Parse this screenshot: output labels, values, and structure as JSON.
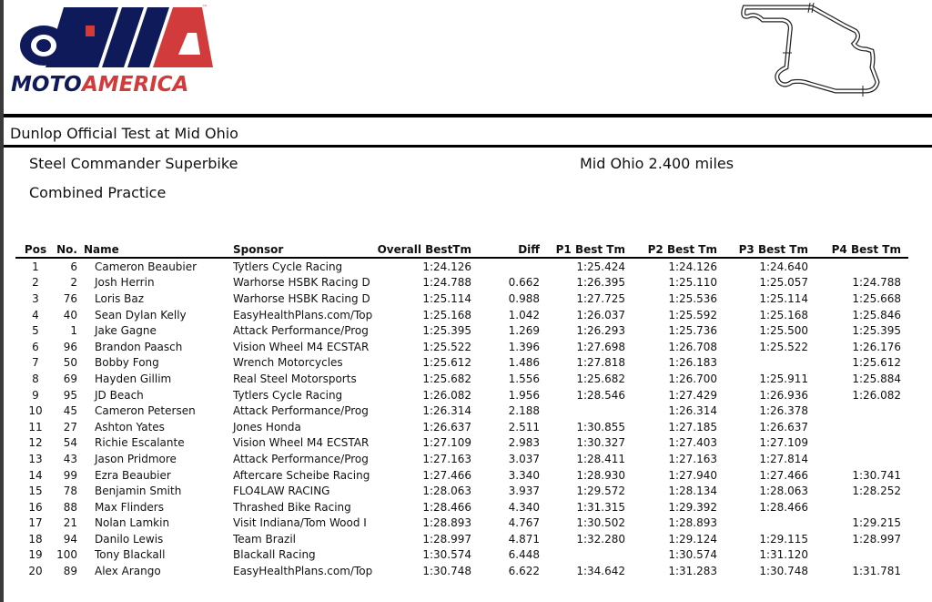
{
  "logo": {
    "text_moto": "MOTO",
    "text_america": "AMERICA",
    "tm": "™",
    "colors": {
      "navy": "#0f1a5a",
      "red": "#d23b3b"
    }
  },
  "header": {
    "event_title": "Dunlop Official Test at Mid Ohio",
    "class_name": "Steel Commander Superbike",
    "track": "Mid Ohio 2.400 miles",
    "session": "Combined Practice"
  },
  "table": {
    "columns": [
      "Pos",
      "No.",
      "Name",
      "Sponsor",
      "Overall BestTm",
      "Diff",
      "P1 Best Tm",
      "P2 Best Tm",
      "P3 Best Tm",
      "P4 Best Tm"
    ],
    "rows": [
      [
        "1",
        "6",
        "Cameron Beaubier",
        "Tytlers Cycle Racing",
        "1:24.126",
        "",
        "1:25.424",
        "1:24.126",
        "1:24.640",
        ""
      ],
      [
        "2",
        "2",
        "Josh Herrin",
        "Warhorse HSBK Racing D",
        "1:24.788",
        "0.662",
        "1:26.395",
        "1:25.110",
        "1:25.057",
        "1:24.788"
      ],
      [
        "3",
        "76",
        "Loris Baz",
        "Warhorse HSBK Racing D",
        "1:25.114",
        "0.988",
        "1:27.725",
        "1:25.536",
        "1:25.114",
        "1:25.668"
      ],
      [
        "4",
        "40",
        "Sean Dylan Kelly",
        "EasyHealthPlans.com/Top",
        "1:25.168",
        "1.042",
        "1:26.037",
        "1:25.592",
        "1:25.168",
        "1:25.846"
      ],
      [
        "5",
        "1",
        "Jake Gagne",
        "Attack Performance/Prog",
        "1:25.395",
        "1.269",
        "1:26.293",
        "1:25.736",
        "1:25.500",
        "1:25.395"
      ],
      [
        "6",
        "96",
        "Brandon Paasch",
        "Vision Wheel M4 ECSTAR",
        "1:25.522",
        "1.396",
        "1:27.698",
        "1:26.708",
        "1:25.522",
        "1:26.176"
      ],
      [
        "7",
        "50",
        "Bobby Fong",
        "Wrench Motorcycles",
        "1:25.612",
        "1.486",
        "1:27.818",
        "1:26.183",
        "",
        "1:25.612"
      ],
      [
        "8",
        "69",
        "Hayden Gillim",
        "Real Steel Motorsports",
        "1:25.682",
        "1.556",
        "1:25.682",
        "1:26.700",
        "1:25.911",
        "1:25.884"
      ],
      [
        "9",
        "95",
        "JD Beach",
        "Tytlers Cycle Racing",
        "1:26.082",
        "1.956",
        "1:28.546",
        "1:27.429",
        "1:26.936",
        "1:26.082"
      ],
      [
        "10",
        "45",
        "Cameron Petersen",
        "Attack Performance/Prog",
        "1:26.314",
        "2.188",
        "",
        "1:26.314",
        "1:26.378",
        ""
      ],
      [
        "11",
        "27",
        "Ashton Yates",
        "Jones Honda",
        "1:26.637",
        "2.511",
        "1:30.855",
        "1:27.185",
        "1:26.637",
        ""
      ],
      [
        "12",
        "54",
        "Richie Escalante",
        "Vision Wheel M4 ECSTAR",
        "1:27.109",
        "2.983",
        "1:30.327",
        "1:27.403",
        "1:27.109",
        ""
      ],
      [
        "13",
        "43",
        "Jason Pridmore",
        "Attack Performance/Prog",
        "1:27.163",
        "3.037",
        "1:28.411",
        "1:27.163",
        "1:27.814",
        ""
      ],
      [
        "14",
        "99",
        "Ezra Beaubier",
        "Aftercare Scheibe Racing",
        "1:27.466",
        "3.340",
        "1:28.930",
        "1:27.940",
        "1:27.466",
        "1:30.741"
      ],
      [
        "15",
        "78",
        "Benjamin Smith",
        "FLO4LAW RACING",
        "1:28.063",
        "3.937",
        "1:29.572",
        "1:28.134",
        "1:28.063",
        "1:28.252"
      ],
      [
        "16",
        "88",
        "Max Flinders",
        "Thrashed Bike Racing",
        "1:28.466",
        "4.340",
        "1:31.315",
        "1:29.392",
        "1:28.466",
        ""
      ],
      [
        "17",
        "21",
        "Nolan Lamkin",
        "Visit Indiana/Tom Wood I",
        "1:28.893",
        "4.767",
        "1:30.502",
        "1:28.893",
        "",
        "1:29.215"
      ],
      [
        "18",
        "94",
        "Danilo Lewis",
        "Team Brazil",
        "1:28.997",
        "4.871",
        "1:32.280",
        "1:29.124",
        "1:29.115",
        "1:28.997"
      ],
      [
        "19",
        "100",
        "Tony Blackall",
        "Blackall Racing",
        "1:30.574",
        "6.448",
        "",
        "1:30.574",
        "1:31.120",
        ""
      ],
      [
        "20",
        "89",
        "Alex Arango",
        "EasyHealthPlans.com/Top",
        "1:30.748",
        "6.622",
        "1:34.642",
        "1:31.283",
        "1:30.748",
        "1:31.781"
      ]
    ]
  }
}
